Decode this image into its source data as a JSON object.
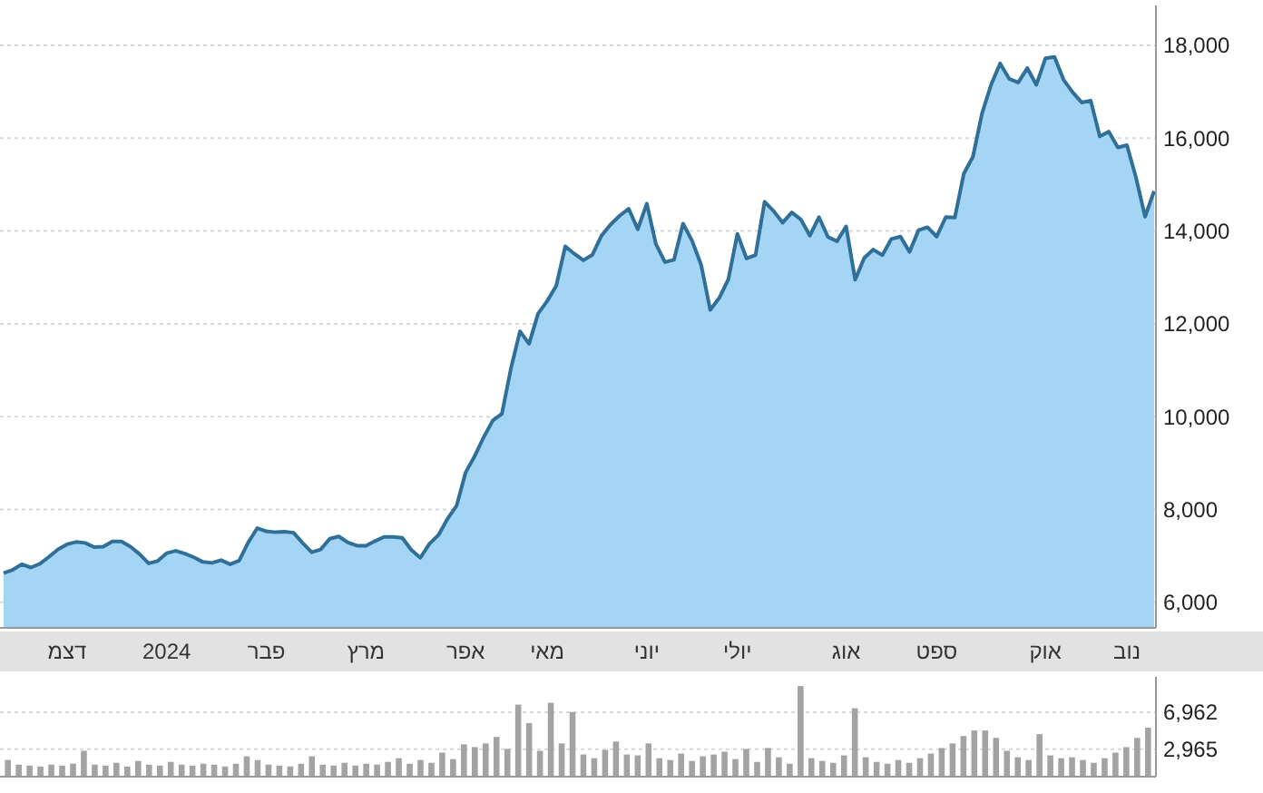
{
  "chart_data": [
    {
      "type": "area",
      "categories": [
        null,
        null,
        null,
        null,
        null,
        null,
        null,
        "דצמ",
        null,
        null,
        null,
        null,
        null,
        null,
        null,
        null,
        null,
        null,
        "2024",
        null,
        null,
        null,
        null,
        null,
        null,
        null,
        null,
        null,
        null,
        "פבר",
        null,
        null,
        null,
        null,
        null,
        null,
        null,
        null,
        null,
        null,
        "מרץ",
        null,
        null,
        null,
        null,
        null,
        null,
        null,
        null,
        null,
        null,
        "אפר",
        null,
        null,
        null,
        null,
        null,
        null,
        null,
        null,
        "מאי",
        null,
        null,
        null,
        null,
        null,
        null,
        null,
        null,
        null,
        null,
        "יוני",
        null,
        null,
        null,
        null,
        null,
        null,
        null,
        null,
        null,
        "יולי",
        null,
        null,
        null,
        null,
        null,
        null,
        null,
        null,
        null,
        null,
        null,
        "אוג",
        null,
        null,
        null,
        null,
        null,
        null,
        null,
        null,
        null,
        "ספט",
        null,
        null,
        null,
        null,
        null,
        null,
        null,
        null,
        null,
        null,
        null,
        "אוק",
        null,
        null,
        null,
        null,
        null,
        null,
        null,
        null,
        "נוב",
        null,
        null,
        null
      ],
      "series": [
        {
          "color": "#2f6f98",
          "values": [
            6630,
            6700,
            6820,
            6750,
            6830,
            6980,
            7140,
            7250,
            7300,
            7280,
            7190,
            7200,
            7310,
            7310,
            7200,
            7040,
            6840,
            6890,
            7060,
            7110,
            7050,
            6970,
            6870,
            6850,
            6910,
            6820,
            6900,
            7290,
            7600,
            7530,
            7510,
            7520,
            7500,
            7280,
            7080,
            7140,
            7370,
            7420,
            7290,
            7220,
            7220,
            7320,
            7410,
            7410,
            7390,
            7130,
            6960,
            7260,
            7450,
            7800,
            8080,
            8800,
            9150,
            9560,
            9920,
            10060,
            11040,
            11840,
            11570,
            12220,
            12490,
            12820,
            13670,
            13510,
            13370,
            13490,
            13900,
            14140,
            14330,
            14480,
            14040,
            14590,
            13720,
            13330,
            13380,
            14160,
            13790,
            13270,
            12300,
            12560,
            12960,
            13940,
            13410,
            13480,
            14630,
            14430,
            14180,
            14400,
            14250,
            13900,
            14300,
            13870,
            13780,
            14100,
            12950,
            13420,
            13600,
            13480,
            13830,
            13880,
            13550,
            14020,
            14080,
            13880,
            14300,
            14290,
            15240,
            15600,
            16530,
            17150,
            17610,
            17280,
            17200,
            17510,
            17150,
            17720,
            17750,
            17260,
            16990,
            16770,
            16810,
            16040,
            16140,
            15800,
            15850,
            15150,
            14310,
            14860
          ]
        }
      ],
      "ylim": [
        5450,
        18860
      ],
      "yticks": [
        {
          "value": 6000,
          "label": "6,000"
        },
        {
          "value": 8000,
          "label": "8,000"
        },
        {
          "value": 10000,
          "label": "10,000"
        },
        {
          "value": 12000,
          "label": "12,000"
        },
        {
          "value": 14000,
          "label": "14,000"
        },
        {
          "value": 16000,
          "label": "16,000"
        },
        {
          "value": 18000,
          "label": "18,000"
        }
      ],
      "grid": "y"
    },
    {
      "type": "bar",
      "categories": [
        null,
        null,
        null,
        null,
        null,
        null,
        null,
        null,
        null,
        null,
        null,
        null,
        null,
        null,
        null,
        null,
        null,
        null,
        null,
        null,
        null,
        null,
        null,
        null,
        null,
        null,
        null,
        null,
        null,
        null,
        null,
        null,
        null,
        null,
        null,
        null,
        null,
        null,
        null,
        null,
        null,
        null,
        null,
        null,
        null,
        null,
        null,
        null,
        null,
        null,
        null,
        null,
        null,
        null,
        null,
        null,
        null,
        null,
        null,
        null,
        null,
        null,
        null,
        null,
        null,
        null,
        null,
        null,
        null,
        null,
        null,
        null,
        null,
        null,
        null,
        null,
        null,
        null,
        null,
        null,
        null,
        null,
        null,
        null,
        null,
        null,
        null,
        null,
        null,
        null,
        null,
        null,
        null,
        null,
        null,
        null,
        null,
        null,
        null,
        null,
        null,
        null,
        null,
        null,
        null,
        null
      ],
      "series": [
        {
          "color": "#a3a3a3",
          "values": [
            1800,
            1300,
            1200,
            1100,
            1300,
            1200,
            1400,
            2800,
            1300,
            1200,
            1500,
            1100,
            1700,
            1300,
            1200,
            1600,
            1300,
            1200,
            1400,
            1300,
            1100,
            1400,
            2200,
            1800,
            1300,
            1200,
            1100,
            1400,
            2200,
            1300,
            1200,
            1500,
            1200,
            1400,
            1300,
            1600,
            2000,
            1400,
            1800,
            1500,
            2600,
            1900,
            3500,
            3200,
            3600,
            4300,
            3000,
            7800,
            5800,
            2800,
            8000,
            3600,
            7000,
            2400,
            2000,
            2900,
            3800,
            2400,
            2300,
            3600,
            2000,
            1800,
            2500,
            1700,
            2200,
            2400,
            2700,
            1900,
            3000,
            1600,
            3100,
            2100,
            1400,
            9800,
            2000,
            1700,
            1500,
            2300,
            7400,
            2100,
            1600,
            1400,
            1800,
            1500,
            2000,
            2500,
            3100,
            3600,
            4400,
            5000,
            5000,
            4200,
            2800,
            2100,
            1800,
            4600,
            2300,
            2000,
            2100,
            1800,
            1500,
            2000,
            2600,
            3200,
            4200,
            5300
          ]
        }
      ],
      "ylim": [
        0,
        10800
      ],
      "yticks": [
        {
          "value": 2965,
          "label": "2,965"
        },
        {
          "value": 6962,
          "label": "6,962"
        }
      ],
      "grid": "y",
      "tick_labels": "y"
    }
  ]
}
